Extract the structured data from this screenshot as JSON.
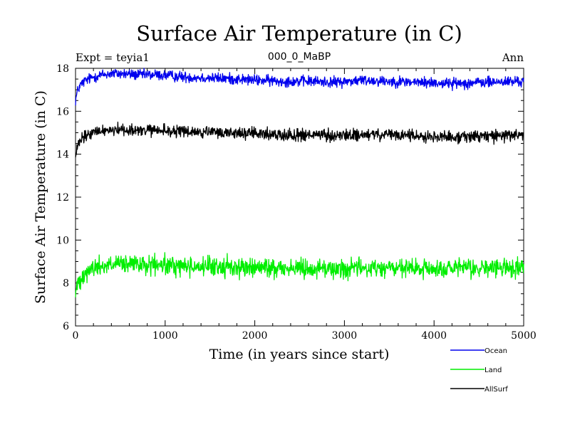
{
  "chart_data": {
    "type": "line",
    "title": "Surface Air Temperature (in C)",
    "subtitle": "000_0_MaBP",
    "expt_label": "Expt = teyia1",
    "period_label": "Ann",
    "xlabel": "Time (in years since start)",
    "ylabel": "Surface Air Temperature (in C)",
    "xlim": [
      0,
      5000
    ],
    "ylim": [
      6,
      18
    ],
    "xticks": [
      0,
      1000,
      2000,
      3000,
      4000,
      5000
    ],
    "yticks": [
      6,
      8,
      10,
      12,
      14,
      16,
      18
    ],
    "grid": false,
    "legend_position": "bottom-right",
    "series": [
      {
        "name": "Ocean",
        "color": "#0000ee",
        "noise": 0.18,
        "x": [
          0,
          20,
          50,
          100,
          200,
          300,
          400,
          500,
          700,
          900,
          1200,
          1500,
          1800,
          2000,
          2300,
          2600,
          2900,
          3200,
          3500,
          3800,
          4200,
          4600,
          5000
        ],
        "values": [
          16.5,
          16.9,
          17.2,
          17.4,
          17.6,
          17.7,
          17.75,
          17.75,
          17.7,
          17.7,
          17.6,
          17.55,
          17.5,
          17.45,
          17.4,
          17.4,
          17.35,
          17.45,
          17.4,
          17.35,
          17.3,
          17.35,
          17.4
        ]
      },
      {
        "name": "Land",
        "color": "#00ee00",
        "noise": 0.32,
        "x": [
          0,
          20,
          50,
          100,
          200,
          300,
          400,
          500,
          700,
          900,
          1200,
          1500,
          1800,
          2000,
          2300,
          2600,
          2900,
          3200,
          3500,
          3800,
          4200,
          4600,
          5000
        ],
        "values": [
          7.5,
          7.9,
          8.2,
          8.5,
          8.7,
          8.8,
          8.85,
          8.85,
          8.85,
          8.8,
          8.8,
          8.75,
          8.75,
          8.7,
          8.7,
          8.7,
          8.65,
          8.7,
          8.7,
          8.65,
          8.65,
          8.7,
          8.7
        ]
      },
      {
        "name": "AllSurf",
        "color": "#000000",
        "noise": 0.2,
        "x": [
          0,
          20,
          50,
          100,
          200,
          300,
          400,
          500,
          700,
          900,
          1200,
          1500,
          1800,
          2000,
          2300,
          2600,
          2900,
          3200,
          3500,
          3800,
          4200,
          4600,
          5000
        ],
        "values": [
          13.8,
          14.3,
          14.6,
          14.8,
          15.0,
          15.1,
          15.15,
          15.15,
          15.1,
          15.1,
          15.05,
          15.0,
          15.0,
          14.95,
          14.9,
          14.9,
          14.85,
          14.9,
          14.9,
          14.85,
          14.8,
          14.85,
          14.9
        ]
      }
    ]
  }
}
